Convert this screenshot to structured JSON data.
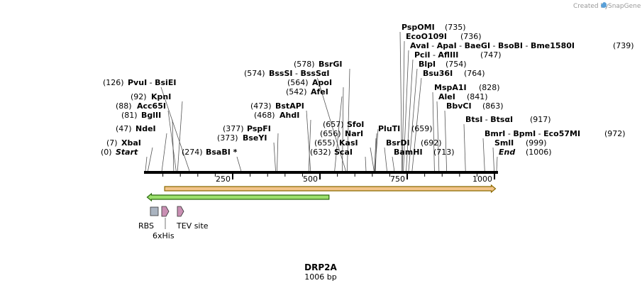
{
  "app": {
    "credit_prefix": "Created by",
    "brand": "SnapGene"
  },
  "map": {
    "name": "DRP2A",
    "length_label": "1006 bp",
    "length": 1006,
    "ticks": [
      "250",
      "500",
      "750",
      "1000"
    ],
    "tick_values": [
      250,
      500,
      750,
      1000
    ]
  },
  "sites": [
    {
      "pos": 0,
      "num": "(0)",
      "parts": [
        {
          "t": "Start",
          "style": "bi"
        }
      ]
    },
    {
      "pos": 7,
      "num": "(7)",
      "parts": [
        {
          "t": "XbaI",
          "style": "b"
        }
      ]
    },
    {
      "pos": 47,
      "num": "(47)",
      "parts": [
        {
          "t": "NdeI",
          "style": "b"
        }
      ]
    },
    {
      "pos": 81,
      "num": "(81)",
      "parts": [
        {
          "t": "BglII",
          "style": "b"
        }
      ]
    },
    {
      "pos": 88,
      "num": "(88)",
      "parts": [
        {
          "t": "Acc65I",
          "style": "b"
        }
      ]
    },
    {
      "pos": 92,
      "num": "(92)",
      "parts": [
        {
          "t": "KpnI",
          "style": "b"
        }
      ]
    },
    {
      "pos": 126,
      "num": "(126)",
      "parts": [
        {
          "t": "PvuI",
          "style": "b"
        },
        {
          "t": " - ",
          "style": "n"
        },
        {
          "t": "BsiEI",
          "style": "b"
        }
      ]
    },
    {
      "pos": 274,
      "num": "(274)",
      "parts": [
        {
          "t": "BsaBI *",
          "style": "b"
        }
      ]
    },
    {
      "pos": 373,
      "num": "(373)",
      "parts": [
        {
          "t": "BseYI",
          "style": "b"
        }
      ]
    },
    {
      "pos": 377,
      "num": "(377)",
      "parts": [
        {
          "t": "PspFI",
          "style": "b"
        }
      ]
    },
    {
      "pos": 468,
      "num": "(468)",
      "parts": [
        {
          "t": "AhdI",
          "style": "b"
        }
      ]
    },
    {
      "pos": 473,
      "num": "(473)",
      "parts": [
        {
          "t": "BstAPI",
          "style": "b"
        }
      ]
    },
    {
      "pos": 542,
      "num": "(542)",
      "parts": [
        {
          "t": "AfeI",
          "style": "b"
        }
      ]
    },
    {
      "pos": 564,
      "num": "(564)",
      "parts": [
        {
          "t": "ApoI",
          "style": "b"
        }
      ]
    },
    {
      "pos": 574,
      "num": "(574)",
      "parts": [
        {
          "t": "BssSI",
          "style": "b"
        },
        {
          "t": " - ",
          "style": "n"
        },
        {
          "t": "BssSαI",
          "style": "b"
        }
      ]
    },
    {
      "pos": 578,
      "num": "(578)",
      "parts": [
        {
          "t": "BsrGI",
          "style": "b"
        }
      ]
    },
    {
      "pos": 632,
      "num": "(632)",
      "parts": [
        {
          "t": "ScaI",
          "style": "b"
        }
      ]
    },
    {
      "pos": 655,
      "num": "(655)",
      "parts": [
        {
          "t": "KasI",
          "style": "b"
        }
      ]
    },
    {
      "pos": 656,
      "num": "(656)",
      "parts": [
        {
          "t": "NarI",
          "style": "b"
        }
      ]
    },
    {
      "pos": 657,
      "num": "(657)",
      "parts": [
        {
          "t": "SfoI",
          "style": "b"
        }
      ]
    },
    {
      "pos": 659,
      "num": "(659)",
      "parts": [
        {
          "t": "PluTI",
          "style": "b"
        }
      ]
    },
    {
      "pos": 692,
      "num": "(692)",
      "parts": [
        {
          "t": "BsrDI",
          "style": "b"
        }
      ]
    },
    {
      "pos": 713,
      "num": "(713)",
      "parts": [
        {
          "t": "BamHI",
          "style": "b"
        }
      ]
    },
    {
      "pos": 735,
      "num": "(735)",
      "parts": [
        {
          "t": "PspOMI",
          "style": "b"
        }
      ]
    },
    {
      "pos": 736,
      "num": "(736)",
      "parts": [
        {
          "t": "EcoO109I",
          "style": "b"
        }
      ]
    },
    {
      "pos": 739,
      "num": "(739)",
      "parts": [
        {
          "t": "AvaI",
          "style": "b"
        },
        {
          "t": " - ",
          "style": "n"
        },
        {
          "t": "ApaI",
          "style": "b"
        },
        {
          "t": " - ",
          "style": "n"
        },
        {
          "t": "BaeGI",
          "style": "b"
        },
        {
          "t": " - ",
          "style": "n"
        },
        {
          "t": "BsoBI",
          "style": "b"
        },
        {
          "t": " - ",
          "style": "n"
        },
        {
          "t": "Bme1580I",
          "style": "b"
        }
      ]
    },
    {
      "pos": 747,
      "num": "(747)",
      "parts": [
        {
          "t": "PciI",
          "style": "b"
        },
        {
          "t": " - ",
          "style": "n"
        },
        {
          "t": "AflIII",
          "style": "b"
        }
      ]
    },
    {
      "pos": 754,
      "num": "(754)",
      "parts": [
        {
          "t": "BlpI",
          "style": "b"
        }
      ]
    },
    {
      "pos": 764,
      "num": "(764)",
      "parts": [
        {
          "t": "Bsu36I",
          "style": "b"
        }
      ]
    },
    {
      "pos": 828,
      "num": "(828)",
      "parts": [
        {
          "t": "MspA1I",
          "style": "b"
        }
      ]
    },
    {
      "pos": 841,
      "num": "(841)",
      "parts": [
        {
          "t": "AleI",
          "style": "b"
        }
      ]
    },
    {
      "pos": 863,
      "num": "(863)",
      "parts": [
        {
          "t": "BbvCI",
          "style": "b"
        }
      ]
    },
    {
      "pos": 917,
      "num": "(917)",
      "parts": [
        {
          "t": "BtsI",
          "style": "b"
        },
        {
          "t": " - ",
          "style": "n"
        },
        {
          "t": "BtsαI",
          "style": "b"
        }
      ]
    },
    {
      "pos": 972,
      "num": "(972)",
      "parts": [
        {
          "t": "BmrI",
          "style": "b"
        },
        {
          "t": " - ",
          "style": "n"
        },
        {
          "t": "BpmI",
          "style": "b"
        },
        {
          "t": " - ",
          "style": "n"
        },
        {
          "t": "Eco57MI",
          "style": "b"
        }
      ]
    },
    {
      "pos": 999,
      "num": "(999)",
      "parts": [
        {
          "t": "SmlI",
          "style": "b"
        }
      ]
    },
    {
      "pos": 1006,
      "num": "(1006)",
      "parts": [
        {
          "t": "End",
          "style": "bi"
        }
      ]
    }
  ],
  "features": [
    {
      "name": "orange-orf",
      "start": 55,
      "end": 1003,
      "direction": "forward",
      "color": "#f2c48a",
      "stroke": "#8a6a00"
    },
    {
      "name": "green-orf",
      "start": 5,
      "end": 526,
      "direction": "reverse",
      "color": "#9be06b",
      "stroke": "#2d6a10"
    }
  ],
  "small_features": [
    {
      "label": "RBS",
      "kind": "box",
      "color": "#aab4c0"
    },
    {
      "label": "6xHis",
      "kind": "arrow",
      "color": "#c98fb3"
    },
    {
      "label": "TEV site",
      "kind": "arrow",
      "color": "#c98fb3"
    }
  ]
}
